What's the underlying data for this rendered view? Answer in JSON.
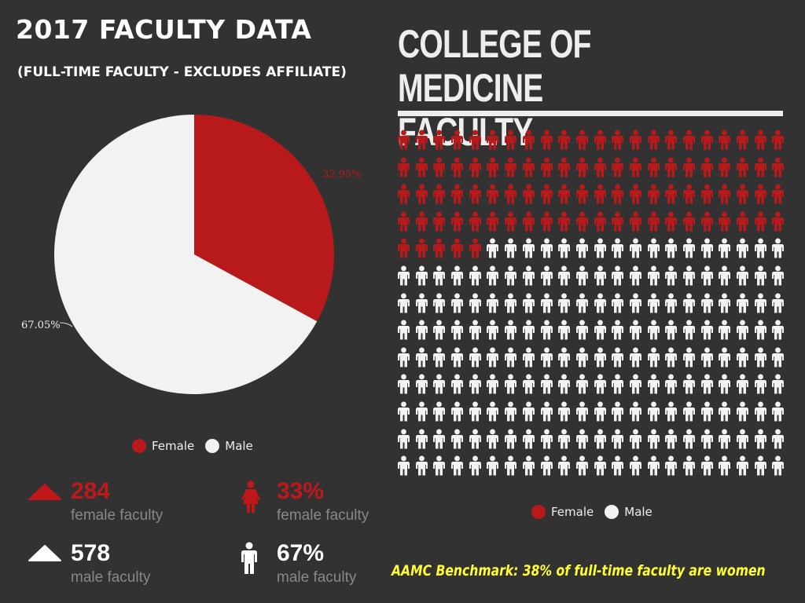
{
  "header": {
    "title": "2017 FACULTY DATA",
    "subtitle": "(FULL-TIME FACULTY - EXCLUDES AFFILIATE)"
  },
  "right_panel": {
    "title_line1": "COLLEGE OF MEDICINE",
    "title_line2": "FACULTY"
  },
  "colors": {
    "female": "#b8191a",
    "male": "#f2f2f2",
    "background": "#323232",
    "benchmark": "#ffff33"
  },
  "chart_data": [
    {
      "type": "pie",
      "title": "",
      "categories": [
        "Female",
        "Male"
      ],
      "values": [
        32.95,
        67.05
      ],
      "labels": [
        "32.95%",
        "67.05%"
      ],
      "legend": [
        "Female",
        "Male"
      ],
      "legend_position": "bottom"
    },
    {
      "type": "pictogram",
      "categories": [
        "Female",
        "Male"
      ],
      "values": [
        93,
        193
      ],
      "columns": 22,
      "legend": [
        "Female",
        "Male"
      ],
      "legend_position": "bottom"
    }
  ],
  "stats": {
    "female_count": {
      "value": "284",
      "label": "female faculty"
    },
    "female_percent": {
      "value": "33%",
      "label": "female faculty"
    },
    "male_count": {
      "value": "578",
      "label": "male faculty"
    },
    "male_percent": {
      "value": "67%",
      "label": "male faculty"
    }
  },
  "benchmark": "AAMC Benchmark: 38% of full-time faculty are women"
}
